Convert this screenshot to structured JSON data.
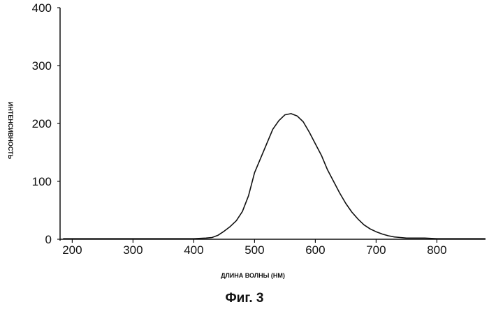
{
  "figure": {
    "caption": "Фиг. 3"
  },
  "chart_data": {
    "type": "line",
    "xlabel": "ДЛИНА ВОЛНЫ (НМ)",
    "ylabel": "ИНТЕНСИВНОСТЬ",
    "xlim": [
      180,
      880
    ],
    "ylim": [
      0,
      400
    ],
    "xticks": [
      200,
      300,
      400,
      500,
      600,
      700,
      800
    ],
    "yticks": [
      0,
      100,
      200,
      300,
      400
    ],
    "grid": false,
    "line_color": "#111111",
    "series": [
      {
        "x": [
          185,
          250,
          300,
          350,
          400,
          420,
          430,
          440,
          450,
          460,
          470,
          480,
          490,
          500,
          510,
          520,
          530,
          540,
          550,
          560,
          570,
          580,
          590,
          600,
          610,
          620,
          630,
          640,
          650,
          660,
          670,
          680,
          690,
          700,
          710,
          720,
          730,
          740,
          750,
          760,
          780,
          800,
          820,
          850,
          880
        ],
        "y": [
          1,
          1,
          1,
          1,
          1,
          2,
          3,
          7,
          14,
          22,
          32,
          48,
          75,
          115,
          140,
          165,
          190,
          205,
          215,
          217,
          213,
          203,
          185,
          165,
          145,
          120,
          100,
          80,
          62,
          47,
          35,
          25,
          18,
          13,
          9,
          6,
          4,
          3,
          2,
          2,
          2,
          1,
          1,
          1,
          1
        ]
      }
    ]
  }
}
